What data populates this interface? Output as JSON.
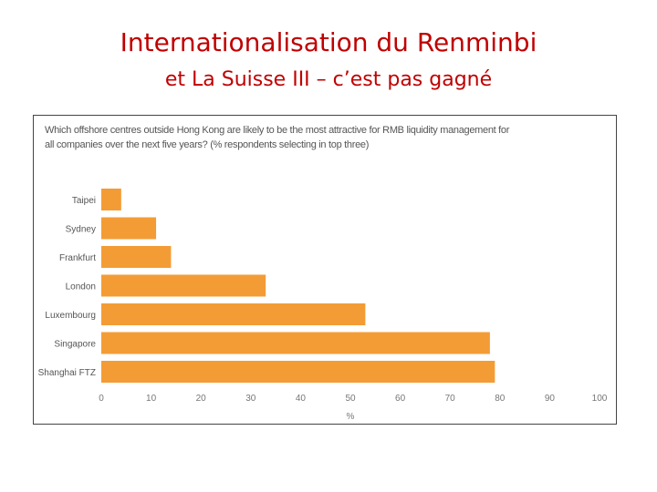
{
  "slide": {
    "title_line1": "Internationalisation du Renminbi",
    "title_line2": "et La Suisse III – c’est pas gagné"
  },
  "chart_data": {
    "type": "bar",
    "orientation": "horizontal",
    "title": "Which offshore centres outside Hong Kong are likely to be the most attractive for RMB liquidity management for all companies over the next five years? (% respondents selecting in top three)",
    "xlabel": "%",
    "categories": [
      "Taipei",
      "Sydney",
      "Frankfurt",
      "London",
      "Luxembourg",
      "Singapore",
      "Shanghai FTZ"
    ],
    "values": [
      4,
      11,
      14,
      33,
      53,
      78,
      79
    ],
    "xlim": [
      0,
      100
    ],
    "xticks": [
      0,
      10,
      20,
      30,
      40,
      50,
      60,
      70,
      80,
      90,
      100
    ],
    "bar_color": "#f39c35",
    "grid": false
  }
}
